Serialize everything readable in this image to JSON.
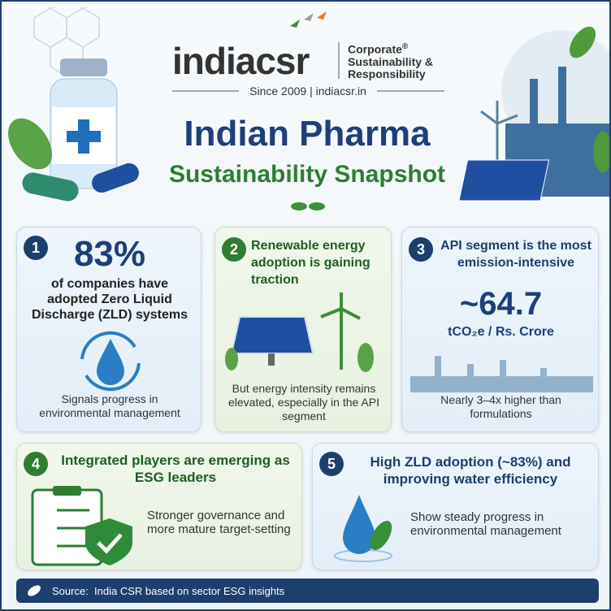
{
  "header": {
    "logo": "indiacsr",
    "logo_tagline": [
      "Corporate",
      "Sustainability &",
      "Responsibility"
    ],
    "registered": "®",
    "since": "Since 2009 | indiacsr.in",
    "title": "Indian Pharma",
    "subtitle": "Sustainability Snapshot"
  },
  "cards": [
    {
      "number": "1",
      "stat": "83%",
      "text": "of companies have adopted Zero Liquid Discharge (ZLD) systems",
      "note": "Signals progress in environmental management"
    },
    {
      "number": "2",
      "title": "Renewable energy adoption is gaining traction",
      "note": "But energy intensity remains elevated, especially in the API segment"
    },
    {
      "number": "3",
      "title": "API segment is the most emission-intensive",
      "stat": "~64.7",
      "unit": "tCO₂e / Rs. Crore",
      "note": "Nearly 3–4x higher than formulations"
    },
    {
      "number": "4",
      "title": "Integrated players are emerging as ESG leaders",
      "note": "Stronger governance and more mature target-setting"
    },
    {
      "number": "5",
      "title": "High ZLD adoption (~83%) and improving water efficiency",
      "note": "Show steady progress in environmental management"
    }
  ],
  "footer": {
    "source": "Source:  India CSR based on sector ESG insights"
  }
}
